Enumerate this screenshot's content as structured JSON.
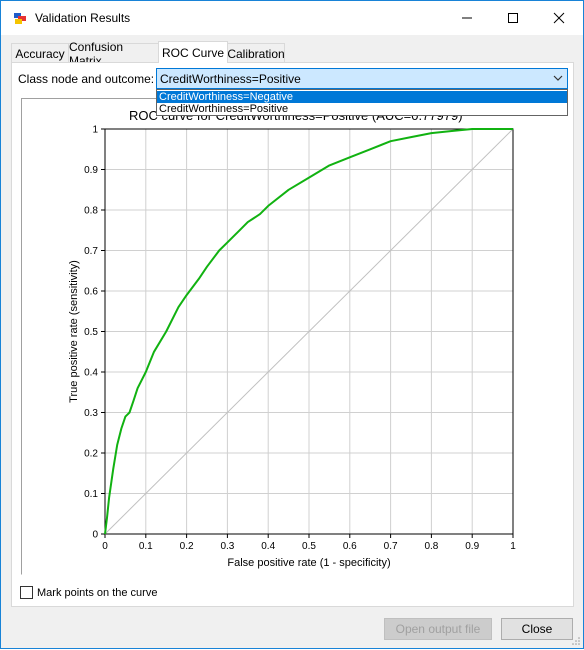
{
  "window": {
    "title": "Validation Results"
  },
  "tabs": [
    {
      "label": "Accuracy"
    },
    {
      "label": "Confusion Matrix"
    },
    {
      "label": "ROC Curve"
    },
    {
      "label": "Calibration"
    }
  ],
  "class_node": {
    "label": "Class node and outcome:",
    "selected": "CreditWorthiness=Positive",
    "options": [
      "CreditWorthiness=Negative",
      "CreditWorthiness=Positive"
    ]
  },
  "footer": {
    "checkbox_label": "Mark points on the curve",
    "open_output_label": "Open output file",
    "close_label": "Close"
  },
  "colors": {
    "curve": "#11b211",
    "diagonal": "#c0c0c0",
    "grid": "#d0d0d0",
    "accent": "#0078d7"
  },
  "chart_data": {
    "type": "line",
    "title": "ROC curve for CreditWorthiness=Positive (AUC=0.77979)",
    "xlabel": "False positive rate (1 - specificity)",
    "ylabel": "True positive rate (sensitivity)",
    "xlim": [
      0,
      1
    ],
    "ylim": [
      0,
      1
    ],
    "xticks": [
      "0",
      "0.1",
      "0.2",
      "0.3",
      "0.4",
      "0.5",
      "0.6",
      "0.7",
      "0.8",
      "0.9",
      "1"
    ],
    "yticks": [
      "0",
      "0.1",
      "0.2",
      "0.3",
      "0.4",
      "0.5",
      "0.6",
      "0.7",
      "0.8",
      "0.9",
      "1"
    ],
    "grid": true,
    "series": [
      {
        "x": [
          0,
          0.005,
          0.01,
          0.02,
          0.03,
          0.04,
          0.05,
          0.06,
          0.07,
          0.08,
          0.1,
          0.12,
          0.15,
          0.18,
          0.2,
          0.23,
          0.25,
          0.28,
          0.3,
          0.33,
          0.35,
          0.38,
          0.4,
          0.45,
          0.5,
          0.55,
          0.6,
          0.65,
          0.7,
          0.75,
          0.8,
          0.85,
          0.9,
          0.95,
          1
        ],
        "y": [
          0,
          0.04,
          0.09,
          0.16,
          0.22,
          0.26,
          0.29,
          0.3,
          0.33,
          0.36,
          0.4,
          0.45,
          0.5,
          0.56,
          0.59,
          0.63,
          0.66,
          0.7,
          0.72,
          0.75,
          0.77,
          0.79,
          0.81,
          0.85,
          0.88,
          0.91,
          0.93,
          0.95,
          0.97,
          0.98,
          0.99,
          0.995,
          1,
          1,
          1
        ]
      }
    ],
    "reference_line": {
      "x": [
        0,
        1
      ],
      "y": [
        0,
        1
      ]
    }
  }
}
